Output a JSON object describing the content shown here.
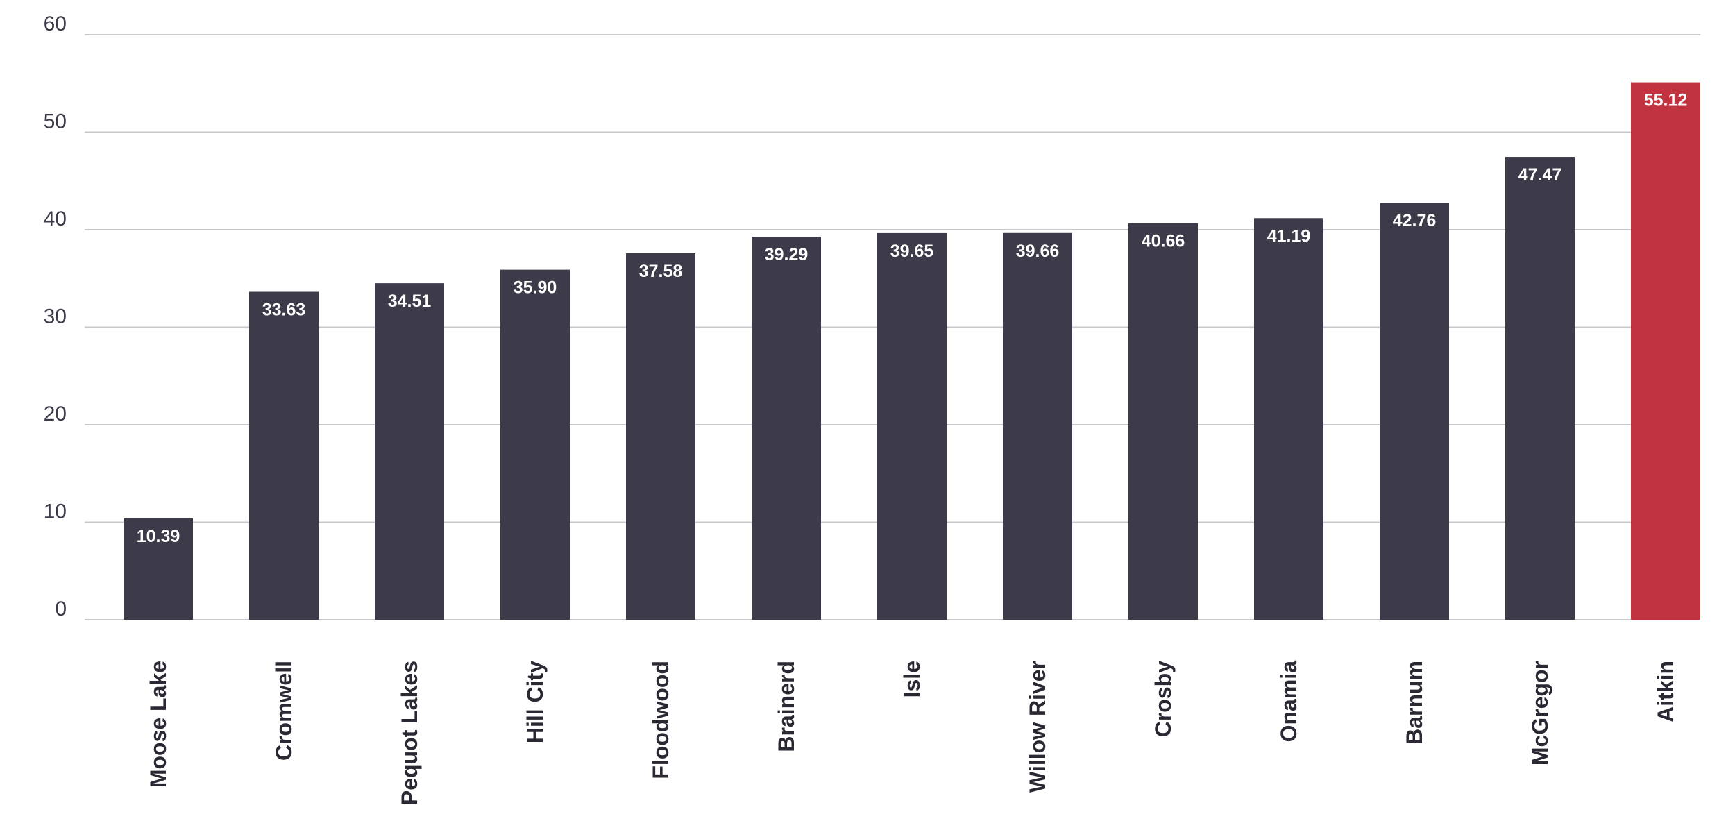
{
  "chart_data": {
    "type": "bar",
    "title": "",
    "xlabel": "",
    "ylabel": "",
    "ylim": [
      0,
      60
    ],
    "yticks": [
      0,
      10,
      20,
      30,
      40,
      50,
      60
    ],
    "grid": true,
    "legend": "none",
    "categories": [
      "Moose Lake",
      "Cromwell",
      "Pequot Lakes",
      "Hill City",
      "Floodwood",
      "Brainerd",
      "Isle",
      "Willow River",
      "Crosby",
      "Onamia",
      "Barnum",
      "McGregor",
      "Aitkin"
    ],
    "values": [
      10.39,
      33.63,
      34.51,
      35.9,
      37.58,
      39.29,
      39.65,
      39.66,
      40.66,
      41.19,
      42.76,
      47.47,
      55.12
    ],
    "value_labels": [
      "10.39",
      "33.63",
      "34.51",
      "35.90",
      "37.58",
      "39.29",
      "39.65",
      "39.66",
      "40.66",
      "41.19",
      "42.76",
      "47.47",
      "55.12"
    ],
    "colors": {
      "default_bar": "#3d3a49",
      "highlight_bar": "#c1333f",
      "gridline": "#c8c8cc"
    },
    "highlight_category": "Aitkin"
  }
}
